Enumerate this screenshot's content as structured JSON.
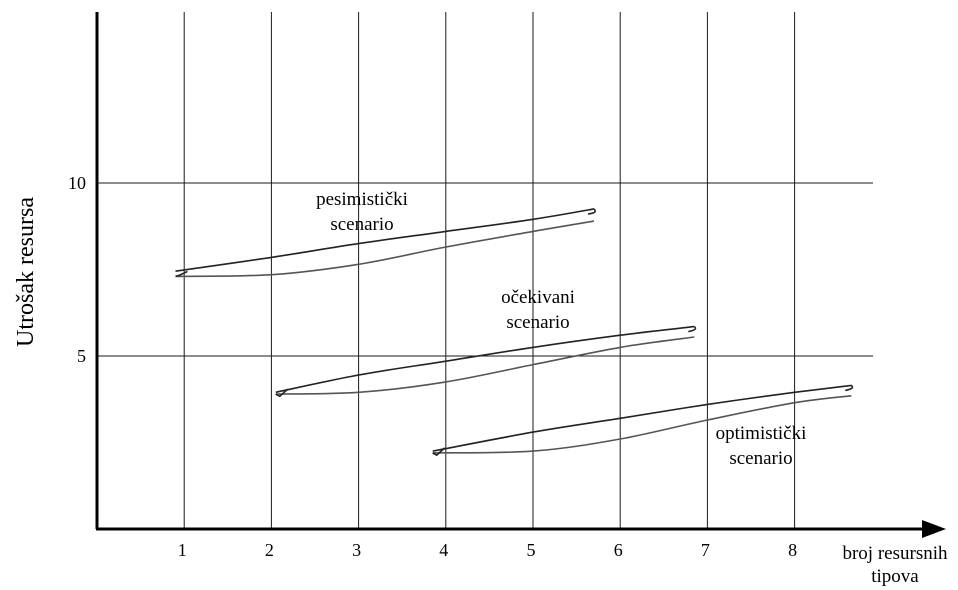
{
  "chart_data": {
    "type": "line",
    "ylabel": "Utrošak resursa",
    "xlabel_line1": "broj resursnih",
    "xlabel_line2": "tipova",
    "x_ticks": [
      "1",
      "2",
      "3",
      "4",
      "5",
      "6",
      "7",
      "8"
    ],
    "y_ticks": [
      {
        "value": 5,
        "label": "5"
      },
      {
        "value": 10,
        "label": "10"
      }
    ],
    "xlim": [
      0,
      9
    ],
    "ylim": [
      0,
      15
    ],
    "grid": true,
    "series": [
      {
        "label_line1": "pesimistički",
        "label_line2": "scenario",
        "upper": [
          [
            0.9,
            7.45
          ],
          [
            2,
            7.85
          ],
          [
            3,
            8.25
          ],
          [
            4,
            8.6
          ],
          [
            5,
            8.95
          ],
          [
            5.7,
            9.25
          ]
        ],
        "lower": [
          [
            0.9,
            7.3
          ],
          [
            2,
            7.35
          ],
          [
            3,
            7.65
          ],
          [
            4,
            8.15
          ],
          [
            5,
            8.6
          ],
          [
            5.7,
            8.9
          ]
        ],
        "color": "#222222"
      },
      {
        "label_line1": "očekivani",
        "label_line2": "scenario",
        "upper": [
          [
            2.05,
            3.95
          ],
          [
            3,
            4.45
          ],
          [
            4,
            4.85
          ],
          [
            5,
            5.25
          ],
          [
            6,
            5.6
          ],
          [
            6.85,
            5.85
          ]
        ],
        "lower": [
          [
            2.05,
            3.9
          ],
          [
            3,
            3.95
          ],
          [
            4,
            4.25
          ],
          [
            5,
            4.75
          ],
          [
            6,
            5.25
          ],
          [
            6.85,
            5.55
          ]
        ],
        "color": "#222222"
      },
      {
        "label_line1": "optimistički",
        "label_line2": "scenario",
        "upper": [
          [
            3.85,
            2.25
          ],
          [
            5,
            2.8
          ],
          [
            6,
            3.2
          ],
          [
            7,
            3.6
          ],
          [
            8,
            3.95
          ],
          [
            8.65,
            4.15
          ]
        ],
        "lower": [
          [
            3.85,
            2.2
          ],
          [
            5,
            2.25
          ],
          [
            6,
            2.6
          ],
          [
            7,
            3.15
          ],
          [
            8,
            3.65
          ],
          [
            8.65,
            3.85
          ]
        ],
        "color": "#222222"
      }
    ]
  }
}
